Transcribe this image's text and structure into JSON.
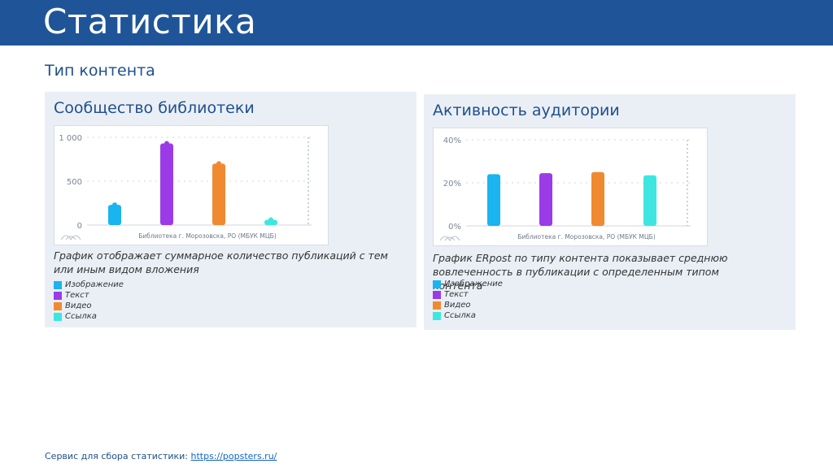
{
  "header": {
    "title": "Статистика"
  },
  "section_title": "Тип контента",
  "panels": [
    {
      "title": "Сообщество библиотеки",
      "description": "График отображает суммарное количество публикаций с тем или иным видом вложения",
      "legend": [
        {
          "label": "Изображение",
          "color": "#1ab4f0"
        },
        {
          "label": "Текст",
          "color": "#9b3be8"
        },
        {
          "label": "Видео",
          "color": "#f08a30"
        },
        {
          "label": "Ссылка",
          "color": "#3ee6e0"
        }
      ]
    },
    {
      "title": "Активность аудитории",
      "description": "График ERpost по типу контента показывает среднюю вовлеченность в публикации с определенным типом контента",
      "legend": [
        {
          "label": "Изображение",
          "color": "#1ab4f0"
        },
        {
          "label": "Текст",
          "color": "#9b3be8"
        },
        {
          "label": "Видео",
          "color": "#f08a30"
        },
        {
          "label": "Ссылка",
          "color": "#3ee6e0"
        }
      ]
    }
  ],
  "chart_data": [
    {
      "type": "bar",
      "categories": [
        "Изображение",
        "Текст",
        "Видео",
        "Ссылка"
      ],
      "values": [
        230,
        930,
        700,
        60
      ],
      "colors": [
        "#1ab4f0",
        "#9b3be8",
        "#f08a30",
        "#3ee6e0"
      ],
      "ylim": [
        0,
        1000
      ],
      "yticks": [
        0,
        500,
        1000
      ],
      "ytick_labels": [
        "0",
        "500",
        "1 000"
      ],
      "xlabel": "Библиотека г. Морозовска, РО (МБУК МЦБ)",
      "grid": true
    },
    {
      "type": "bar",
      "categories": [
        "Изображение",
        "Текст",
        "Видео",
        "Ссылка"
      ],
      "values": [
        24,
        24.5,
        25,
        23.5
      ],
      "colors": [
        "#1ab4f0",
        "#9b3be8",
        "#f08a30",
        "#3ee6e0"
      ],
      "ylim": [
        0,
        40
      ],
      "yticks": [
        0,
        20,
        40
      ],
      "ytick_labels": [
        "0%",
        "20%",
        "40%"
      ],
      "xlabel": "Библиотека г. Морозовска, РО (МБУК МЦБ)",
      "grid": true
    }
  ],
  "footer": {
    "label": "Сервис для сбора статистики:",
    "link_text": "https://popsters.ru/"
  }
}
